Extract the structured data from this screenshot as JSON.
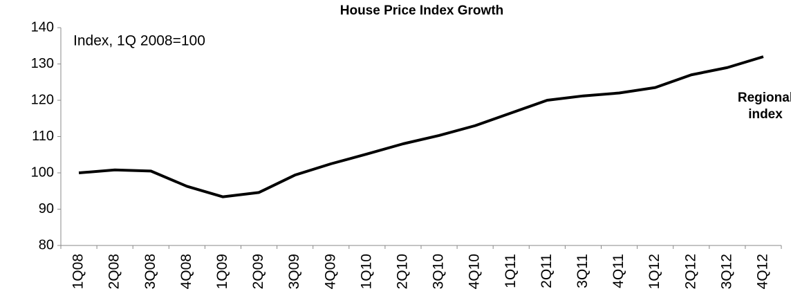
{
  "chart_data": {
    "type": "line",
    "title": "House Price Index Growth",
    "subtitle": "Index, 1Q 2008=100",
    "categories": [
      "1Q08",
      "2Q08",
      "3Q08",
      "4Q08",
      "1Q09",
      "2Q09",
      "3Q09",
      "4Q09",
      "1Q10",
      "2Q10",
      "3Q10",
      "4Q10",
      "1Q11",
      "2Q11",
      "3Q11",
      "4Q11",
      "1Q12",
      "2Q12",
      "3Q12",
      "4Q12"
    ],
    "series": [
      {
        "name": "Regional index",
        "color": "#000000",
        "values": [
          100,
          100.8,
          100.5,
          96.3,
          93.4,
          94.6,
          99.4,
          102.5,
          105.2,
          108,
          110.3,
          113,
          116.5,
          120,
          121.2,
          122,
          123.5,
          127,
          129,
          132
        ]
      }
    ],
    "ylim": [
      80,
      140
    ],
    "yticks": [
      80,
      90,
      100,
      110,
      120,
      130,
      140
    ],
    "grid": false
  }
}
